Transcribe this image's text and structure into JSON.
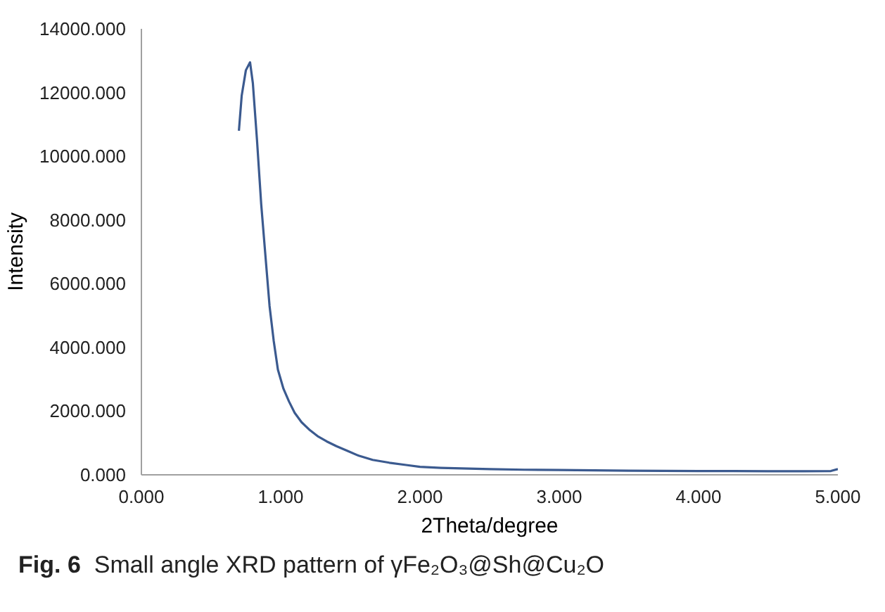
{
  "chart_data": {
    "type": "line",
    "xlabel": "2Theta/degree",
    "ylabel": "Intensity",
    "annotations": [
      "Fig. 6",
      "Small angle XRD pattern of γFe₂O₃@Sh@Cu₂O"
    ],
    "x": [
      0.7,
      0.72,
      0.75,
      0.78,
      0.8,
      0.83,
      0.86,
      0.89,
      0.92,
      0.95,
      0.98,
      1.02,
      1.06,
      1.1,
      1.15,
      1.21,
      1.27,
      1.33,
      1.4,
      1.48,
      1.56,
      1.66,
      1.78,
      1.9,
      2.0,
      2.15,
      2.3,
      2.5,
      2.75,
      3.0,
      3.25,
      3.5,
      3.75,
      4.0,
      4.25,
      4.5,
      4.75,
      4.95,
      5.0
    ],
    "values": [
      10800,
      11900,
      12700,
      12950,
      12300,
      10500,
      8500,
      6900,
      5300,
      4200,
      3300,
      2700,
      2300,
      1950,
      1650,
      1400,
      1200,
      1050,
      900,
      750,
      600,
      470,
      380,
      310,
      250,
      220,
      200,
      180,
      160,
      150,
      140,
      130,
      125,
      120,
      120,
      115,
      115,
      120,
      180
    ],
    "color": "#3b5a8f",
    "marker": "none",
    "line_style": "solid",
    "grid": false,
    "xlim": [
      0,
      5
    ],
    "xticks": [
      {
        "value": 0,
        "label": "0.000"
      },
      {
        "value": 1,
        "label": "1.000"
      },
      {
        "value": 2,
        "label": "2.000"
      },
      {
        "value": 3,
        "label": "3.000"
      },
      {
        "value": 4,
        "label": "4.000"
      },
      {
        "value": 5,
        "label": "5.000"
      }
    ],
    "ylim": [
      0,
      14000
    ],
    "yticks": [
      {
        "value": 0,
        "label": "0.000"
      },
      {
        "value": 2000,
        "label": "2000.000"
      },
      {
        "value": 4000,
        "label": "4000.000"
      },
      {
        "value": 6000,
        "label": "6000.000"
      },
      {
        "value": 8000,
        "label": "8000.000"
      },
      {
        "value": 10000,
        "label": "10000.000"
      },
      {
        "value": 12000,
        "label": "12000.000"
      },
      {
        "value": 14000,
        "label": "14000.000"
      }
    ]
  }
}
